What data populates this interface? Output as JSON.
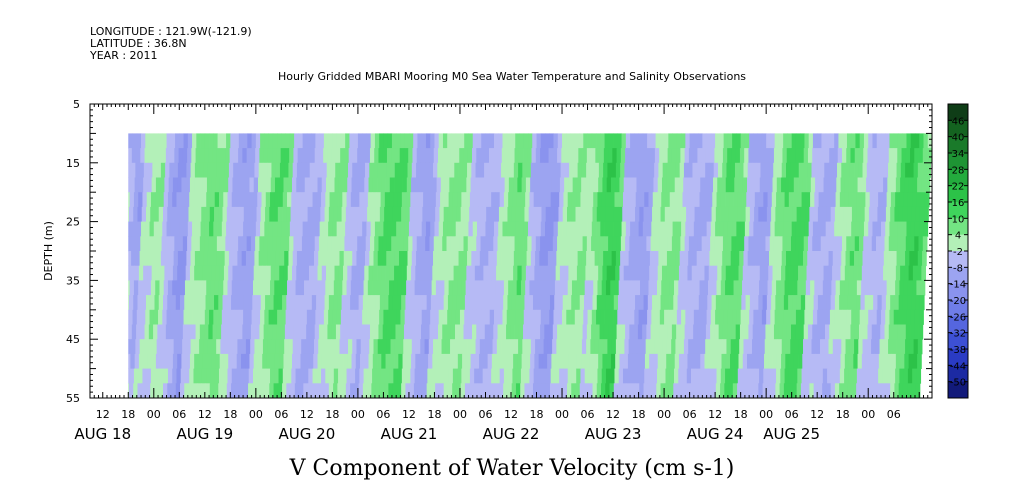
{
  "header": {
    "longitude": "LONGITUDE : 121.9W(-121.9)",
    "latitude": "LATITUDE : 36.8N",
    "year": "YEAR : 2011",
    "title": "Hourly Gridded MBARI Mooring M0 Sea Water Temperature and Salinity Observations"
  },
  "chart_data": {
    "type": "heatmap",
    "title": "Hourly Gridded MBARI Mooring M0 Sea Water Temperature and Salinity Observations",
    "xlabel": "V Component of Water Velocity (cm s-1)",
    "ylabel": "DEPTH (m)",
    "x_range_hours": [
      0,
      198
    ],
    "x_data_start_hour": 9,
    "y_range": [
      5,
      55
    ],
    "y_data_range": [
      10,
      55
    ],
    "y_ticks": [
      5,
      15,
      25,
      35,
      45,
      55
    ],
    "hour_ticks": [
      {
        "h": 3,
        "label": "12"
      },
      {
        "h": 9,
        "label": "18"
      },
      {
        "h": 15,
        "label": "00"
      },
      {
        "h": 21,
        "label": "06"
      },
      {
        "h": 27,
        "label": "12"
      },
      {
        "h": 33,
        "label": "18"
      },
      {
        "h": 39,
        "label": "00"
      },
      {
        "h": 45,
        "label": "06"
      },
      {
        "h": 51,
        "label": "12"
      },
      {
        "h": 57,
        "label": "18"
      },
      {
        "h": 63,
        "label": "00"
      },
      {
        "h": 69,
        "label": "06"
      },
      {
        "h": 75,
        "label": "12"
      },
      {
        "h": 81,
        "label": "18"
      },
      {
        "h": 87,
        "label": "00"
      },
      {
        "h": 93,
        "label": "06"
      },
      {
        "h": 99,
        "label": "12"
      },
      {
        "h": 105,
        "label": "18"
      },
      {
        "h": 111,
        "label": "00"
      },
      {
        "h": 117,
        "label": "06"
      },
      {
        "h": 123,
        "label": "12"
      },
      {
        "h": 129,
        "label": "18"
      },
      {
        "h": 135,
        "label": "00"
      },
      {
        "h": 141,
        "label": "06"
      },
      {
        "h": 147,
        "label": "12"
      },
      {
        "h": 153,
        "label": "18"
      },
      {
        "h": 159,
        "label": "00"
      },
      {
        "h": 165,
        "label": "06"
      },
      {
        "h": 171,
        "label": "12"
      },
      {
        "h": 177,
        "label": "18"
      },
      {
        "h": 183,
        "label": "00"
      },
      {
        "h": 189,
        "label": "06"
      }
    ],
    "date_labels": [
      {
        "h": 3,
        "label": "AUG 18"
      },
      {
        "h": 27,
        "label": "AUG 19"
      },
      {
        "h": 51,
        "label": "AUG 20"
      },
      {
        "h": 75,
        "label": "AUG 21"
      },
      {
        "h": 99,
        "label": "AUG 22"
      },
      {
        "h": 123,
        "label": "AUG 23"
      },
      {
        "h": 147,
        "label": "AUG 24"
      },
      {
        "h": 165,
        "label": "AUG 25"
      }
    ],
    "colorbar": {
      "levels": [
        "46",
        "40",
        "34",
        "28",
        "22",
        "16",
        "10",
        "4",
        "-2",
        "-8",
        "-14",
        "-20",
        "-26",
        "-32",
        "-38",
        "-44",
        "-50"
      ],
      "range": [
        -50,
        52
      ],
      "colors": [
        "#0f3d17",
        "#146320",
        "#1a7a2a",
        "#1e9434",
        "#23ab3d",
        "#2cc248",
        "#3fd55c",
        "#73e583",
        "#b3f0b8",
        "#b6baf5",
        "#9ca4f1",
        "#8a93ee",
        "#6f7de8",
        "#5566df",
        "#3d50d4",
        "#2a3bc4",
        "#1c2aa3",
        "#121a7a"
      ]
    },
    "bands_note": "V-velocity field: alternating positive (green) and negative (blue) bands, slanting with depth",
    "bands": [
      {
        "h0": 9,
        "h1": 13,
        "v": -8
      },
      {
        "h0": 13,
        "h1": 18,
        "v": 6
      },
      {
        "h0": 18,
        "h1": 24,
        "v": -10
      },
      {
        "h0": 24,
        "h1": 33,
        "v": 10
      },
      {
        "h0": 33,
        "h1": 40,
        "v": -8
      },
      {
        "h0": 40,
        "h1": 48,
        "v": 12
      },
      {
        "h0": 48,
        "h1": 55,
        "v": -6
      },
      {
        "h0": 55,
        "h1": 61,
        "v": 8
      },
      {
        "h0": 61,
        "h1": 66,
        "v": -6
      },
      {
        "h0": 66,
        "h1": 76,
        "v": 14
      },
      {
        "h0": 76,
        "h1": 82,
        "v": -8
      },
      {
        "h0": 82,
        "h1": 90,
        "v": 8
      },
      {
        "h0": 90,
        "h1": 97,
        "v": -4
      },
      {
        "h0": 97,
        "h1": 104,
        "v": 10
      },
      {
        "h0": 104,
        "h1": 111,
        "v": -10
      },
      {
        "h0": 111,
        "h1": 118,
        "v": 6
      },
      {
        "h0": 118,
        "h1": 126,
        "v": 16
      },
      {
        "h0": 126,
        "h1": 133,
        "v": -8
      },
      {
        "h0": 133,
        "h1": 140,
        "v": 8
      },
      {
        "h0": 140,
        "h1": 147,
        "v": -6
      },
      {
        "h0": 147,
        "h1": 155,
        "v": 12
      },
      {
        "h0": 155,
        "h1": 161,
        "v": -8
      },
      {
        "h0": 161,
        "h1": 170,
        "v": 14
      },
      {
        "h0": 170,
        "h1": 176,
        "v": -6
      },
      {
        "h0": 176,
        "h1": 183,
        "v": 10
      },
      {
        "h0": 183,
        "h1": 188,
        "v": -4
      },
      {
        "h0": 188,
        "h1": 198,
        "v": 16
      }
    ]
  }
}
